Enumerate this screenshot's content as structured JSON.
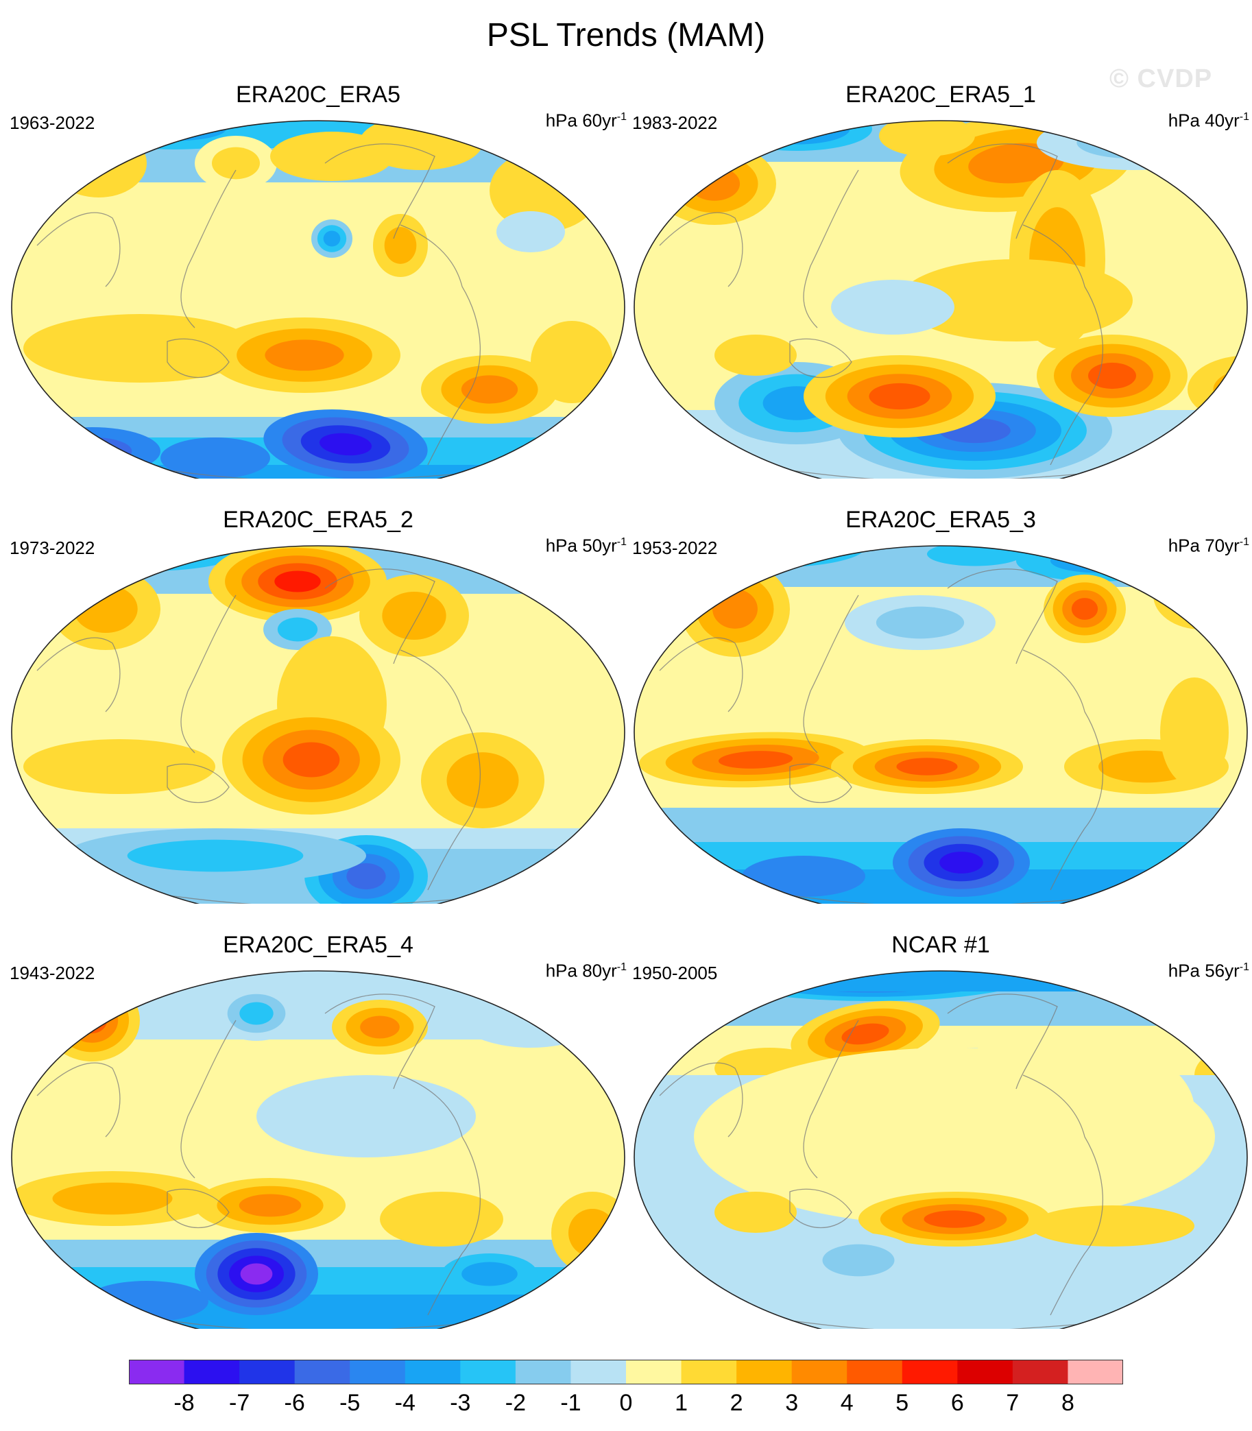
{
  "figure": {
    "title": "PSL Trends (MAM)",
    "watermark": "© CVDP"
  },
  "panels": [
    {
      "title": "ERA20C_ERA5",
      "years": "1963-2022",
      "units_prefix": "hPa",
      "units_value": "60yr",
      "units_exp": "-1"
    },
    {
      "title": "ERA20C_ERA5_1",
      "years": "1983-2022",
      "units_prefix": "hPa",
      "units_value": "40yr",
      "units_exp": "-1"
    },
    {
      "title": "ERA20C_ERA5_2",
      "years": "1973-2022",
      "units_prefix": "hPa",
      "units_value": "50yr",
      "units_exp": "-1"
    },
    {
      "title": "ERA20C_ERA5_3",
      "years": "1953-2022",
      "units_prefix": "hPa",
      "units_value": "70yr",
      "units_exp": "-1"
    },
    {
      "title": "ERA20C_ERA5_4",
      "years": "1943-2022",
      "units_prefix": "hPa",
      "units_value": "80yr",
      "units_exp": "-1"
    },
    {
      "title": "NCAR #1",
      "years": "1950-2005",
      "units_prefix": "hPa",
      "units_value": "56yr",
      "units_exp": "-1"
    }
  ],
  "colorbar": {
    "labels": [
      "-8",
      "-7",
      "-6",
      "-5",
      "-4",
      "-3",
      "-2",
      "-1",
      "0",
      "1",
      "2",
      "3",
      "4",
      "5",
      "6",
      "7",
      "8"
    ],
    "colors": [
      "#8a2bf0",
      "#2c10f0",
      "#2034e8",
      "#3a6ae6",
      "#2a86f0",
      "#18a4f4",
      "#26c4f6",
      "#86ccee",
      "#b8e2f4",
      "#fff8a0",
      "#ffda34",
      "#ffb400",
      "#ff8a00",
      "#ff5a00",
      "#ff1a00",
      "#dc0000",
      "#d42020",
      "#ffb4b4"
    ]
  }
}
